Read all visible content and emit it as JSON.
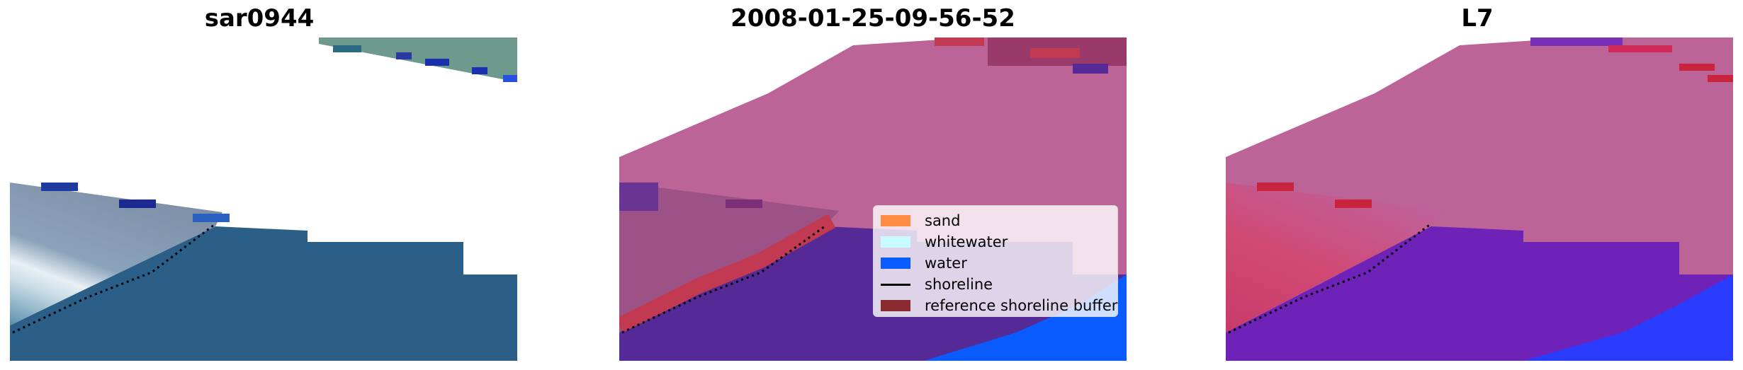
{
  "panels": [
    {
      "title": "sar0944"
    },
    {
      "title": "2008-01-25-09-56-52"
    },
    {
      "title": "L7"
    }
  ],
  "legend": {
    "items": [
      {
        "label": "sand",
        "color": "#ff8c40",
        "kind": "patch"
      },
      {
        "label": "whitewater",
        "color": "#c8fbff",
        "kind": "patch"
      },
      {
        "label": "water",
        "color": "#0a5cff",
        "kind": "patch"
      },
      {
        "label": "shoreline",
        "color": "#000000",
        "kind": "line"
      },
      {
        "label": "reference shoreline buffer",
        "color": "#8b2a2f",
        "kind": "patch"
      }
    ]
  }
}
